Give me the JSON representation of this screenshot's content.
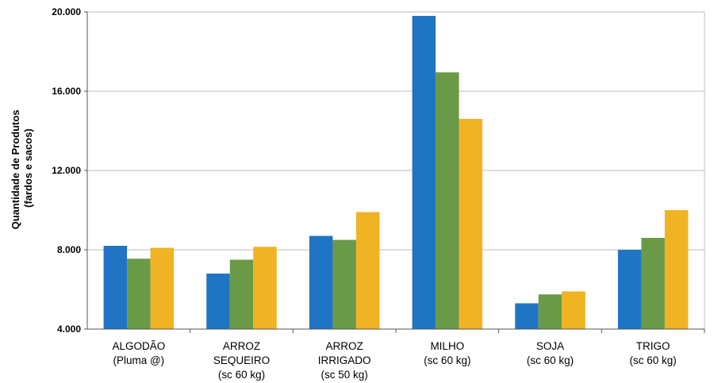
{
  "chart_data": {
    "type": "bar",
    "ylabel_lines": [
      "Quantidade de Produtos",
      "(fardos e sacos)"
    ],
    "ylim": [
      4000,
      20000
    ],
    "yticks": [
      4000,
      8000,
      12000,
      16000,
      20000
    ],
    "ytick_labels": [
      "4.000",
      "8.000",
      "12.000",
      "16.000",
      "20.000"
    ],
    "grid": true,
    "legend": "none",
    "categories": [
      [
        "ALGODÃO",
        "(Pluma @)"
      ],
      [
        "ARROZ",
        "SEQUEIRO",
        "(sc 60 kg)"
      ],
      [
        "ARROZ",
        "IRRIGADO",
        "(sc 50 kg)"
      ],
      [
        "MILHO",
        "(sc 60 kg)"
      ],
      [
        "SOJA",
        "(sc 60 kg)"
      ],
      [
        "TRIGO",
        "(sc 60 kg)"
      ]
    ],
    "series": [
      {
        "color": "#1f74c4",
        "values": [
          8200,
          6800,
          8700,
          19800,
          5300,
          8000
        ]
      },
      {
        "color": "#6a9a47",
        "values": [
          7550,
          7500,
          8500,
          16950,
          5750,
          8600
        ]
      },
      {
        "color": "#f0b323",
        "values": [
          8100,
          8150,
          9900,
          14600,
          5900,
          10000
        ]
      }
    ]
  }
}
